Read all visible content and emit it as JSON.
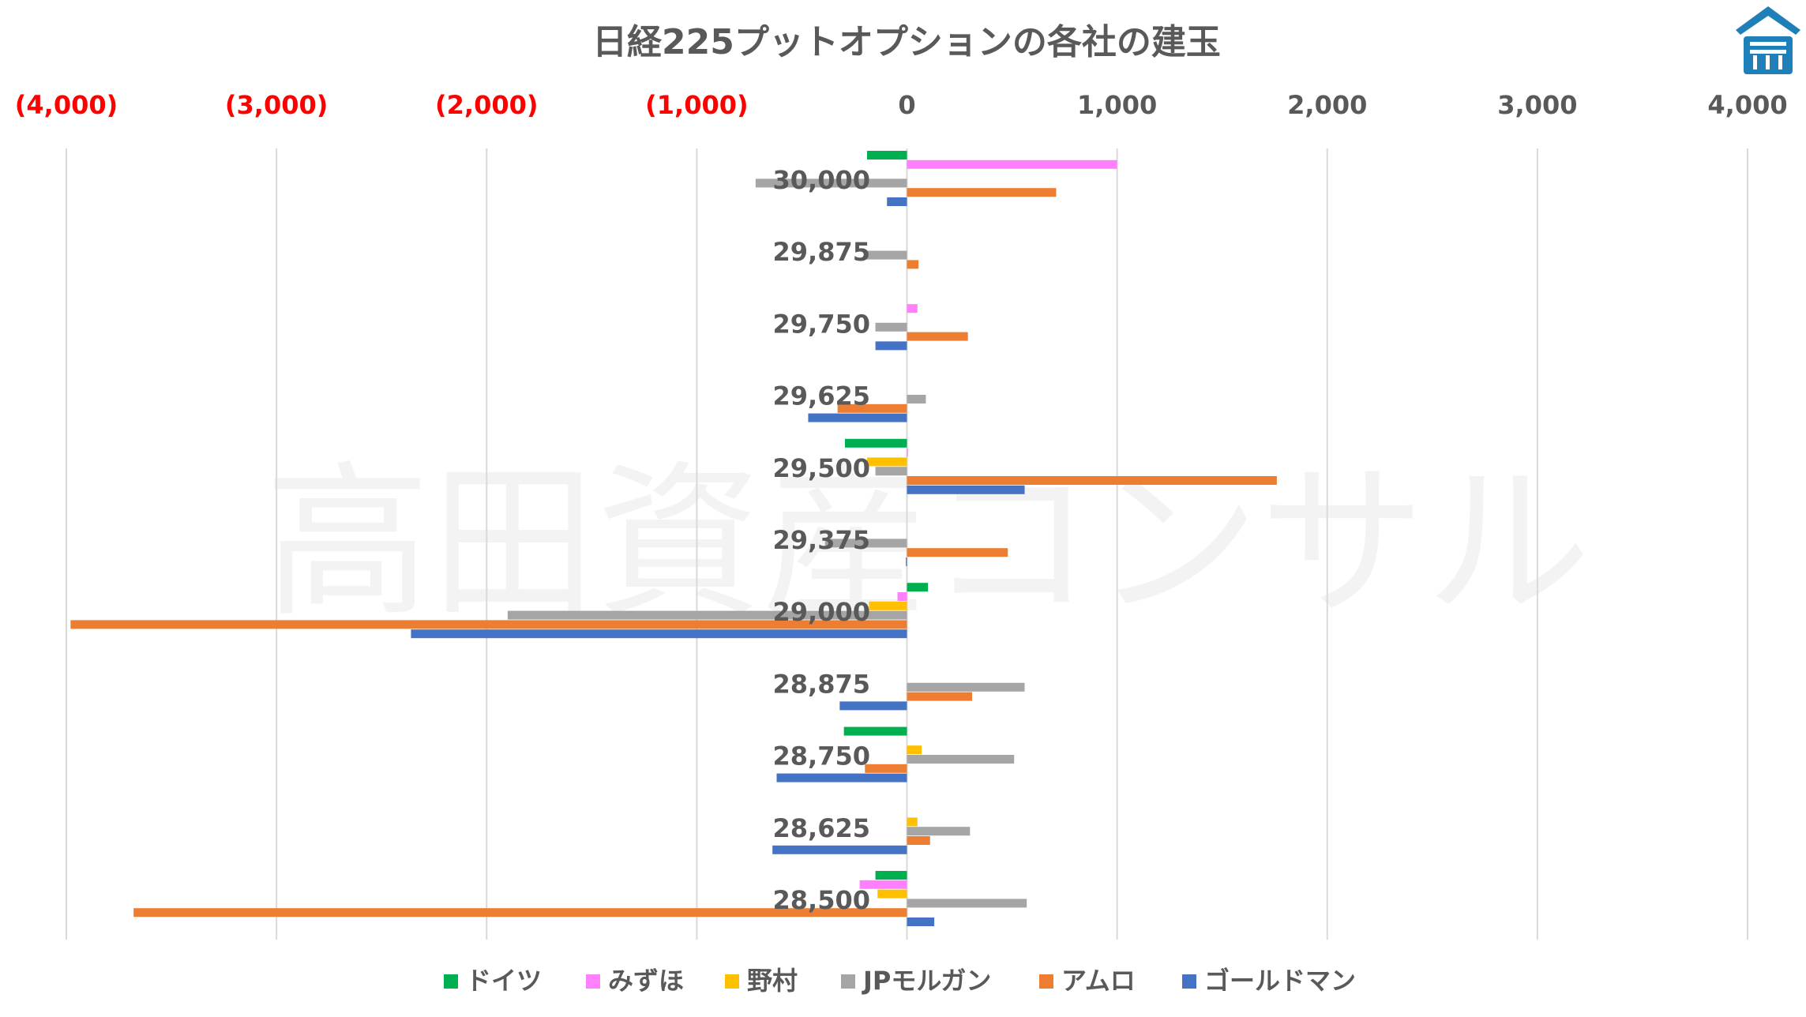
{
  "chart_data": {
    "type": "bar",
    "orientation": "horizontal",
    "title": "日経225プットオプションの各社の建玉",
    "watermark": "高田資産コンサル",
    "xlim": [
      -4000,
      4000
    ],
    "x_ticks": [
      -4000,
      -3000,
      -2000,
      -1000,
      0,
      1000,
      2000,
      3000,
      4000
    ],
    "x_tick_labels": [
      "(4,000)",
      "(3,000)",
      "(2,000)",
      "(1,000)",
      "0",
      "1,000",
      "2,000",
      "3,000",
      "4,000"
    ],
    "negative_tick_color": "#ff0000",
    "positive_tick_color": "#595959",
    "grid": true,
    "legend_position": "bottom",
    "categories": [
      "30,000",
      "29,875",
      "29,750",
      "29,625",
      "29,500",
      "29,375",
      "29,000",
      "28,875",
      "28,750",
      "28,625",
      "28,500"
    ],
    "series": [
      {
        "name": "ドイツ",
        "color": "#00b050",
        "values": [
          -190,
          0,
          0,
          0,
          -295,
          0,
          100,
          0,
          -300,
          0,
          -150
        ]
      },
      {
        "name": "みずほ",
        "color": "#ff80ff",
        "values": [
          1000,
          0,
          50,
          0,
          5,
          0,
          -45,
          0,
          0,
          0,
          -225
        ]
      },
      {
        "name": "野村",
        "color": "#ffc000",
        "values": [
          0,
          0,
          0,
          0,
          -190,
          0,
          -180,
          0,
          70,
          50,
          -140
        ]
      },
      {
        "name": "JPモルガン",
        "color": "#a5a5a5",
        "values": [
          -720,
          -200,
          -150,
          90,
          -150,
          -390,
          -1900,
          560,
          510,
          300,
          570
        ]
      },
      {
        "name": "アムロ",
        "color": "#ed7d31",
        "values": [
          710,
          55,
          290,
          -330,
          1760,
          480,
          -3980,
          310,
          -200,
          110,
          -3680
        ]
      },
      {
        "name": "ゴールドマン",
        "color": "#4472c4",
        "values": [
          -95,
          0,
          -150,
          -470,
          560,
          -5,
          -2360,
          -320,
          -620,
          -640,
          130
        ]
      }
    ]
  },
  "logo": {
    "name": "takada-logo",
    "color": "#1f7fb8"
  }
}
